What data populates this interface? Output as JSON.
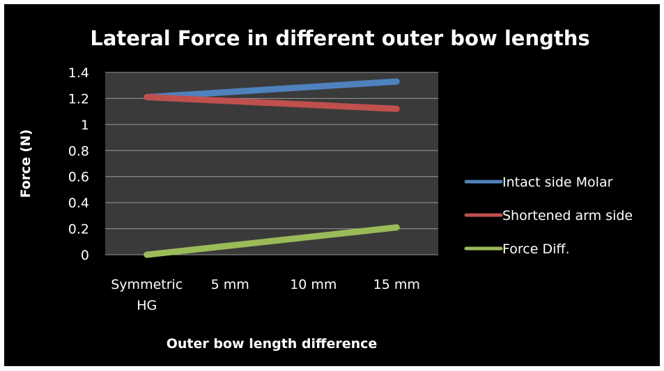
{
  "chart_data": {
    "type": "line",
    "title": "Lateral Force in different outer bow lengths",
    "xlabel": "Outer bow length difference",
    "ylabel": "Force (N)",
    "categories": [
      "Symmetric HG",
      "5 mm",
      "10 mm",
      "15 mm"
    ],
    "ylim": [
      0,
      1.4
    ],
    "yticks": [
      "0",
      "0.2",
      "0.4",
      "0.6",
      "0.8",
      "1",
      "1.2",
      "1.4"
    ],
    "grid": true,
    "legend_position": "right",
    "series": [
      {
        "name": "Intact side Molar",
        "color": "#4f81bd",
        "values": [
          1.21,
          1.25,
          1.29,
          1.33
        ]
      },
      {
        "name": "Shortened arm side",
        "color": "#c0504d",
        "values": [
          1.21,
          1.18,
          1.15,
          1.12
        ]
      },
      {
        "name": "Force Diff.",
        "color": "#9bbb59",
        "values": [
          0.0,
          0.07,
          0.14,
          0.21
        ]
      }
    ],
    "colors": {
      "background": "#000000",
      "plot_area": "#3a3a3a",
      "gridline": "#9a9a9a",
      "text": "#ffffff"
    }
  }
}
